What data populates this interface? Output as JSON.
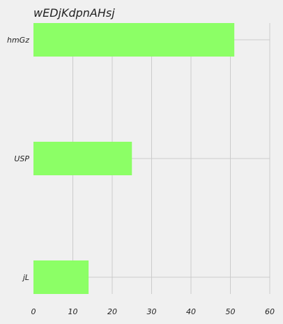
{
  "chart_data": {
    "type": "bar",
    "orientation": "horizontal",
    "title": "wEDjKdpnAHsj",
    "xlabel": "",
    "ylabel": "",
    "categories": [
      "hmGz",
      "USP",
      "jL"
    ],
    "values": [
      51,
      25,
      14
    ],
    "xlim": [
      0,
      60
    ],
    "x_ticks": [
      0,
      10,
      20,
      30,
      40,
      50,
      60
    ],
    "grid": true,
    "legend": "none",
    "colors": {
      "bar": "#8cff66",
      "grid": "#cbcbcb",
      "background": "#f0f0f0",
      "text": "#222222"
    }
  }
}
